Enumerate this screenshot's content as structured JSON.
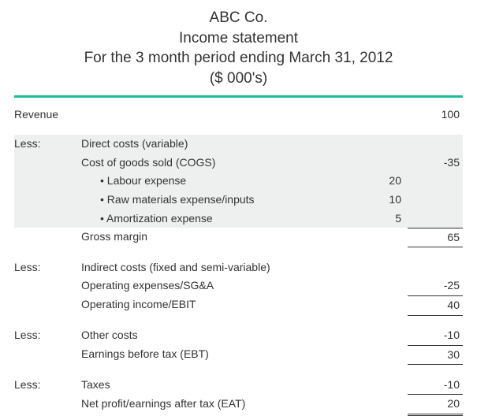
{
  "header": {
    "company": "ABC Co.",
    "title": "Income statement",
    "period": "For the 3 month period ending March 31, 2012",
    "units": "($ 000's)"
  },
  "colors": {
    "accent": "#1abc9c",
    "shade": "#eef0f0",
    "text": "#333333",
    "background": "#ffffff"
  },
  "revenue": {
    "label": "Revenue",
    "value": "100"
  },
  "section1": {
    "less": "Less:",
    "line1": "Direct costs (variable)",
    "line2": "Cost of goods sold (COGS)",
    "cogs_value": "-35",
    "items": [
      {
        "label": "• Labour expense",
        "sub": "20"
      },
      {
        "label": "• Raw materials expense/inputs",
        "sub": "10"
      },
      {
        "label": "• Amortization expense",
        "sub": "5"
      }
    ],
    "gross_label": "Gross margin",
    "gross_value": "65"
  },
  "section2": {
    "less": "Less:",
    "line1": "Indirect costs (fixed and semi-variable)",
    "line2": "Operating expenses/SG&A",
    "opex_value": "-25",
    "ebit_label": "Operating income/EBIT",
    "ebit_value": "40"
  },
  "section3": {
    "less": "Less:",
    "line1": "Other costs",
    "other_value": "-10",
    "ebt_label": "Earnings before tax (EBT)",
    "ebt_value": "30"
  },
  "section4": {
    "less": "Less:",
    "line1": "Taxes",
    "tax_value": "-10",
    "eat_label": "Net profit/earnings after tax (EAT)",
    "eat_value": "20"
  }
}
